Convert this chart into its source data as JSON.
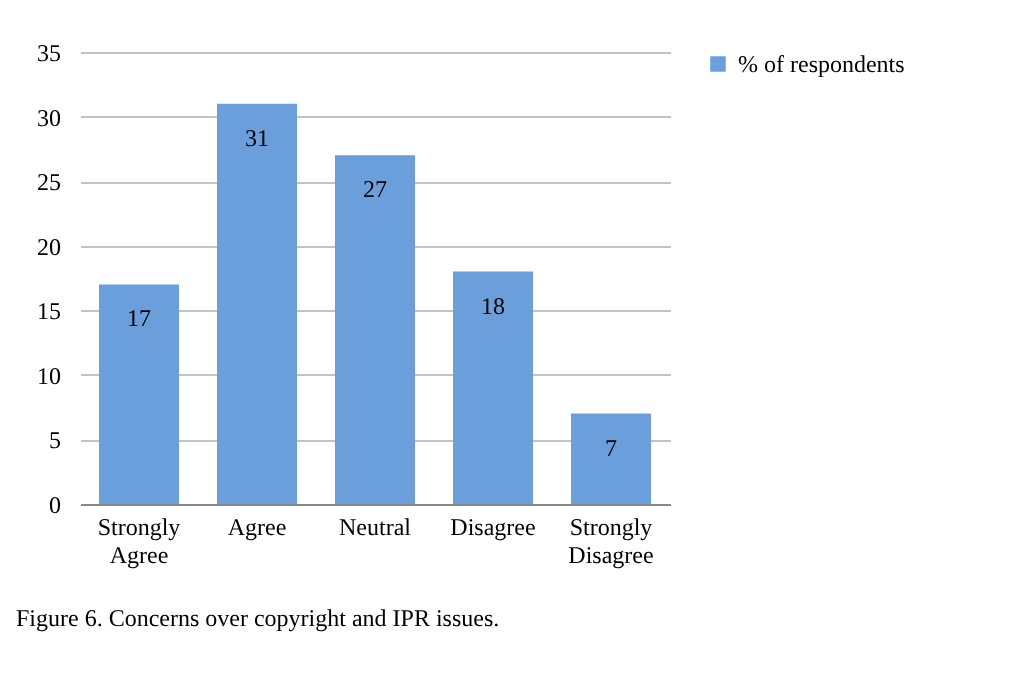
{
  "chart_data": {
    "type": "bar",
    "categories": [
      "Strongly Agree",
      "Agree",
      "Neutral",
      "Disagree",
      "Strongly Disagree"
    ],
    "series": [
      {
        "name": "% of respondents",
        "color": "#6a9fdc",
        "values": [
          17,
          31,
          27,
          18,
          7
        ]
      }
    ],
    "ylim": [
      0,
      35
    ],
    "yticks": [
      0,
      5,
      10,
      15,
      20,
      25,
      30,
      35
    ],
    "grid": "y",
    "legend": "right",
    "data_labels": true,
    "annotations": [
      "Figure 6. Concerns over copyright and IPR issues."
    ]
  }
}
